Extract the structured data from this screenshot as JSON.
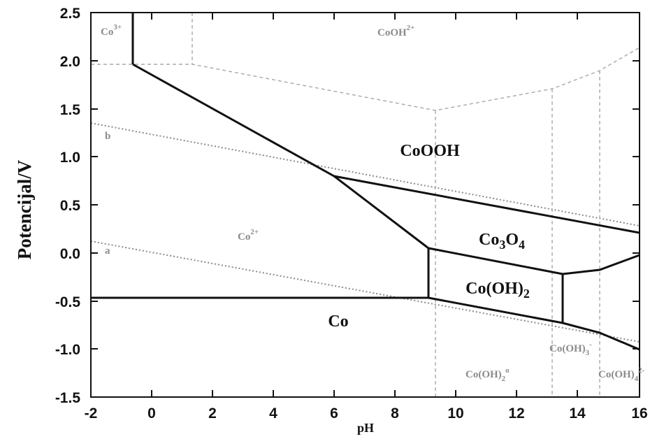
{
  "axes": {
    "x_title": "pH",
    "y_title": "Potencijal/V",
    "x_range": [
      -2,
      16
    ],
    "y_range": [
      -1.5,
      2.5
    ],
    "x_ticks": [
      "-2",
      "0",
      "2",
      "4",
      "6",
      "8",
      "10",
      "12",
      "14",
      "16"
    ],
    "y_ticks": [
      "2.5",
      "2.0",
      "1.5",
      "1.0",
      "0.5",
      "0.0",
      "-0.5",
      "-1.0",
      "-1.5"
    ]
  },
  "regions": {
    "cooh": "CoOOH",
    "co3o4": {
      "base": "Co",
      "sub1": "3",
      "mid": "O",
      "sub2": "4"
    },
    "cooh2": {
      "base": "Co(OH)",
      "sub": "2"
    },
    "co": "Co"
  },
  "species": {
    "co3": {
      "base": "Co",
      "sup": "3+"
    },
    "cooh2plus": {
      "base": "CoOH",
      "sup": "2+"
    },
    "co2": {
      "base": "Co",
      "sup": "2+"
    },
    "cooh2aq": {
      "base": "Co(OH)",
      "sub": "2",
      "sup": "o"
    },
    "cooh3": {
      "base": "Co(OH)",
      "sub": "3",
      "sup": "-"
    },
    "cooh4": {
      "base": "Co(OH)",
      "sub": "4",
      "sup": "2-"
    }
  },
  "lines": {
    "a": "a",
    "b": "b"
  },
  "colors": {
    "boundary": "#111111",
    "species_boundary": "#a8a8a8",
    "water_line": "#8a8a8a",
    "minor_text": "#8a8a8a"
  }
}
